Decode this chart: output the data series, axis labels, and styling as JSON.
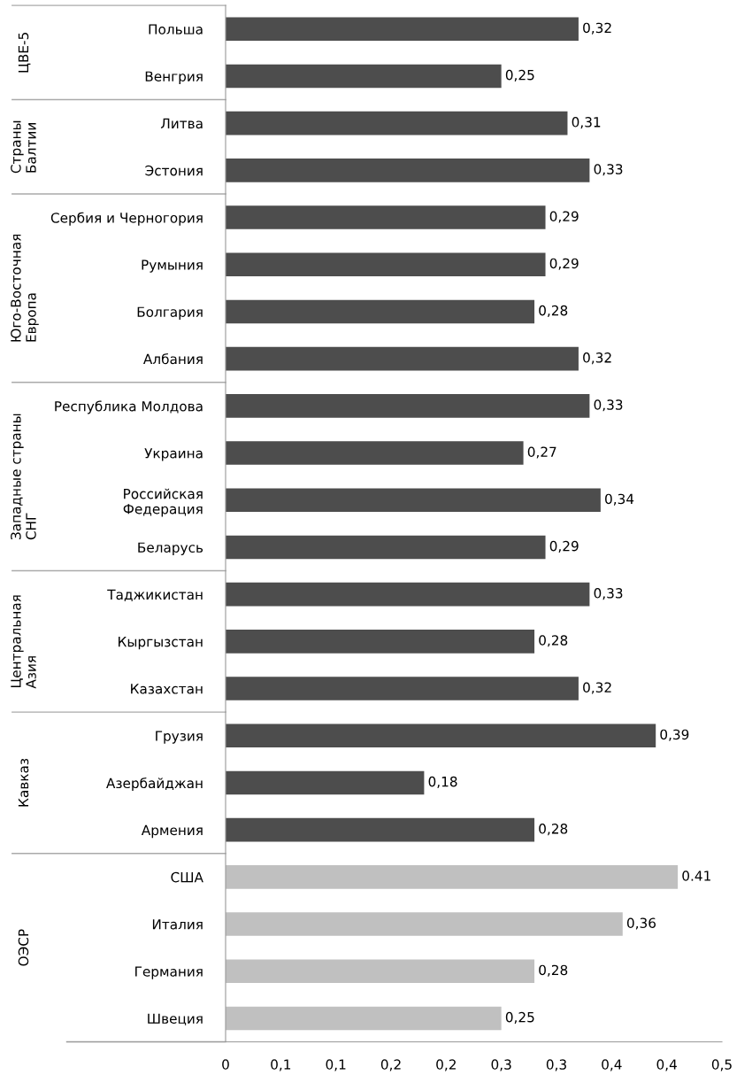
{
  "chart_data": [
    {
      "type": "bar",
      "orientation": "horizontal",
      "ylabel": "ЦВЕ-5",
      "tick_labels": "y",
      "xlim": [
        0,
        0.45
      ],
      "grid": false,
      "categories": [
        "Польша",
        "Венгрия"
      ],
      "values": [
        0.32,
        0.25
      ],
      "colors": [
        "#4d4d4d",
        "#4d4d4d"
      ],
      "value_labels": [
        "0,32",
        "0,25"
      ]
    },
    {
      "type": "bar",
      "orientation": "horizontal",
      "ylabel": "Страны\nБалтии",
      "tick_labels": "y",
      "xlim": [
        0,
        0.45
      ],
      "grid": false,
      "categories": [
        "Литва",
        "Эстония"
      ],
      "values": [
        0.31,
        0.33
      ],
      "colors": [
        "#4d4d4d",
        "#4d4d4d"
      ],
      "value_labels": [
        "0,31",
        "0,33"
      ]
    },
    {
      "type": "bar",
      "orientation": "horizontal",
      "ylabel": "Юго-Восточная\nЕвропа",
      "tick_labels": "y",
      "xlim": [
        0,
        0.45
      ],
      "grid": false,
      "categories": [
        "Сербия и Черногория",
        "Румыния",
        "Болгария",
        "Албания"
      ],
      "values": [
        0.29,
        0.29,
        0.28,
        0.32
      ],
      "colors": [
        "#4d4d4d",
        "#4d4d4d",
        "#4d4d4d",
        "#4d4d4d"
      ],
      "value_labels": [
        "0,29",
        "0,29",
        "0,28",
        "0,32"
      ]
    },
    {
      "type": "bar",
      "orientation": "horizontal",
      "ylabel": "Западные страны\nСНГ",
      "tick_labels": "y",
      "xlim": [
        0,
        0.45
      ],
      "grid": false,
      "categories": [
        "Республика Молдова",
        "Украина",
        "Российская\nФедерация",
        "Беларусь"
      ],
      "values": [
        0.33,
        0.27,
        0.34,
        0.29
      ],
      "colors": [
        "#4d4d4d",
        "#4d4d4d",
        "#4d4d4d",
        "#4d4d4d"
      ],
      "value_labels": [
        "0,33",
        "0,27",
        "0,34",
        "0,29"
      ]
    },
    {
      "type": "bar",
      "orientation": "horizontal",
      "ylabel": "Центральная\nАзия",
      "tick_labels": "y",
      "xlim": [
        0,
        0.45
      ],
      "grid": false,
      "categories": [
        "Таджикистан",
        "Кыргызстан",
        "Казахстан"
      ],
      "values": [
        0.33,
        0.28,
        0.32
      ],
      "colors": [
        "#4d4d4d",
        "#4d4d4d",
        "#4d4d4d"
      ],
      "value_labels": [
        "0,33",
        "0,28",
        "0,32"
      ]
    },
    {
      "type": "bar",
      "orientation": "horizontal",
      "ylabel": "Кавказ",
      "tick_labels": "y",
      "xlim": [
        0,
        0.45
      ],
      "grid": false,
      "categories": [
        "Грузия",
        "Азербайджан",
        "Армения"
      ],
      "values": [
        0.39,
        0.18,
        0.28
      ],
      "colors": [
        "#4d4d4d",
        "#4d4d4d",
        "#4d4d4d"
      ],
      "value_labels": [
        "0,39",
        "0,18",
        "0,28"
      ]
    },
    {
      "type": "bar",
      "orientation": "horizontal",
      "ylabel": "ОЭСР",
      "xlim": [
        0,
        0.45
      ],
      "grid": false,
      "categories": [
        "США",
        "Италия",
        "Германия",
        "Швеция"
      ],
      "values": [
        0.41,
        0.36,
        0.28,
        0.25
      ],
      "colors": [
        "#c0c0c0",
        "#c0c0c0",
        "#c0c0c0",
        "#c0c0c0"
      ],
      "value_labels": [
        "0.41",
        "0,36",
        "0,28",
        "0,25"
      ],
      "xticks": [
        0,
        {
          "value": 0.05,
          "label": "0,1"
        },
        {
          "value": 0.1,
          "label": "0,1"
        },
        {
          "value": 0.15,
          "label": "0,2"
        },
        {
          "value": 0.2,
          "label": "0,2"
        },
        {
          "value": 0.25,
          "label": "0,3"
        },
        {
          "value": 0.3,
          "label": "0,3"
        },
        {
          "value": 0.35,
          "label": "0,4"
        },
        {
          "value": 0.4,
          "label": "0,4"
        },
        {
          "value": 0.45,
          "label": "0,5"
        }
      ]
    }
  ]
}
